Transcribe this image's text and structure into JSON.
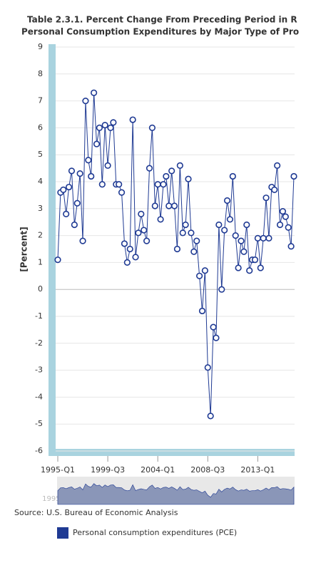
{
  "chart_data": {
    "type": "line",
    "title": "Table 2.3.1. Percent Change From Preceding Period in R",
    "subtitle": "Personal Consumption Expenditures by Major Type of Pro",
    "y_label": "[Percent]",
    "source": "Source: U.S. Bureau of Economic Analysis",
    "categories": [
      "1995-Q1",
      null,
      null,
      null,
      null,
      null,
      null,
      null,
      null,
      null,
      null,
      null,
      null,
      null,
      null,
      null,
      null,
      null,
      "1999-Q3",
      null,
      null,
      null,
      null,
      null,
      null,
      null,
      null,
      null,
      null,
      null,
      null,
      null,
      null,
      null,
      null,
      null,
      "2004-Q1",
      null,
      null,
      null,
      null,
      null,
      null,
      null,
      null,
      null,
      null,
      null,
      null,
      null,
      null,
      null,
      null,
      null,
      "2008-Q3",
      null,
      null,
      null,
      null,
      null,
      null,
      null,
      null,
      null,
      null,
      null,
      null,
      null,
      null,
      null,
      null,
      null,
      "2013-Q1",
      null,
      null,
      null,
      null,
      null,
      null,
      null,
      null,
      null,
      null,
      null,
      null,
      null
    ],
    "series": [
      {
        "name": "Personal consumption expenditures (PCE)",
        "color": "#1f3a93",
        "values": [
          1.1,
          3.6,
          3.7,
          2.8,
          3.8,
          4.4,
          2.4,
          3.2,
          4.3,
          1.8,
          7.0,
          4.8,
          4.2,
          7.3,
          5.4,
          6.0,
          3.9,
          6.1,
          4.6,
          6.0,
          6.2,
          3.9,
          3.9,
          3.6,
          1.7,
          1.0,
          1.5,
          6.3,
          1.2,
          2.1,
          2.8,
          2.2,
          1.8,
          4.5,
          6.0,
          3.1,
          3.9,
          2.6,
          3.9,
          4.2,
          3.1,
          4.4,
          3.1,
          1.5,
          4.6,
          2.1,
          2.4,
          4.1,
          2.1,
          1.4,
          1.8,
          0.5,
          -0.8,
          0.7,
          -2.9,
          -4.7,
          -1.4,
          -1.8,
          2.4,
          0.0,
          2.2,
          3.3,
          2.6,
          4.2,
          2.0,
          0.8,
          1.8,
          1.4,
          2.4,
          0.7,
          1.1,
          1.1,
          1.9,
          0.8,
          1.9,
          3.4,
          1.9,
          3.8,
          3.7,
          4.6,
          2.4,
          2.9,
          2.7,
          2.3,
          1.6,
          4.2
        ]
      }
    ],
    "ylim": [
      -6,
      9
    ],
    "yticks": [
      -6,
      -5,
      -4,
      -3,
      -2,
      -1,
      0,
      1,
      2,
      3,
      4,
      5,
      6,
      7,
      8,
      9
    ],
    "grid": true
  }
}
